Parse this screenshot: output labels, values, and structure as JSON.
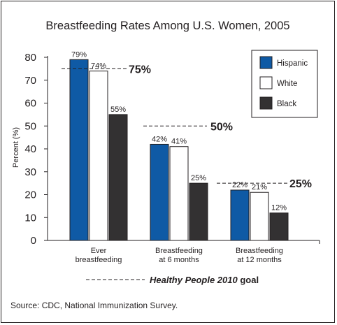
{
  "chart_data": {
    "type": "bar",
    "title": "Breastfeeding Rates Among U.S. Women, 2005",
    "ylabel": "Percent (%)",
    "xlabel": "",
    "ylim": [
      0,
      80
    ],
    "yticks": [
      0,
      10,
      20,
      30,
      40,
      50,
      60,
      70,
      80
    ],
    "categories": [
      "Ever breastfeeding",
      "Breastfeeding at 6 months",
      "Breastfeeding at 12 months"
    ],
    "category_lines": [
      [
        "Ever",
        "breastfeeding"
      ],
      [
        "Breastfeeding",
        "at 6 months"
      ],
      [
        "Breastfeeding",
        "at 12 months"
      ]
    ],
    "series": [
      {
        "name": "Hispanic",
        "values": [
          79,
          42,
          22
        ],
        "color": "#0f5aa5",
        "labels": [
          "79%",
          "42%",
          "22%"
        ]
      },
      {
        "name": "White",
        "values": [
          74,
          41,
          21
        ],
        "color": "#ffffff",
        "labels": [
          "74%",
          "41%",
          "21%"
        ]
      },
      {
        "name": "Black",
        "values": [
          55,
          25,
          12
        ],
        "color": "#333132",
        "labels": [
          "55%",
          "25%",
          "12%"
        ]
      }
    ],
    "goals": [
      {
        "value": 75,
        "label": "75%"
      },
      {
        "value": 50,
        "label": "50%"
      },
      {
        "value": 25,
        "label": "25%"
      }
    ],
    "grid": false,
    "legend_position": "top-right",
    "goal_note": {
      "italic": "Healthy People 2010",
      "rest": " goal"
    },
    "source": "Source: CDC, National Immunization Survey."
  }
}
